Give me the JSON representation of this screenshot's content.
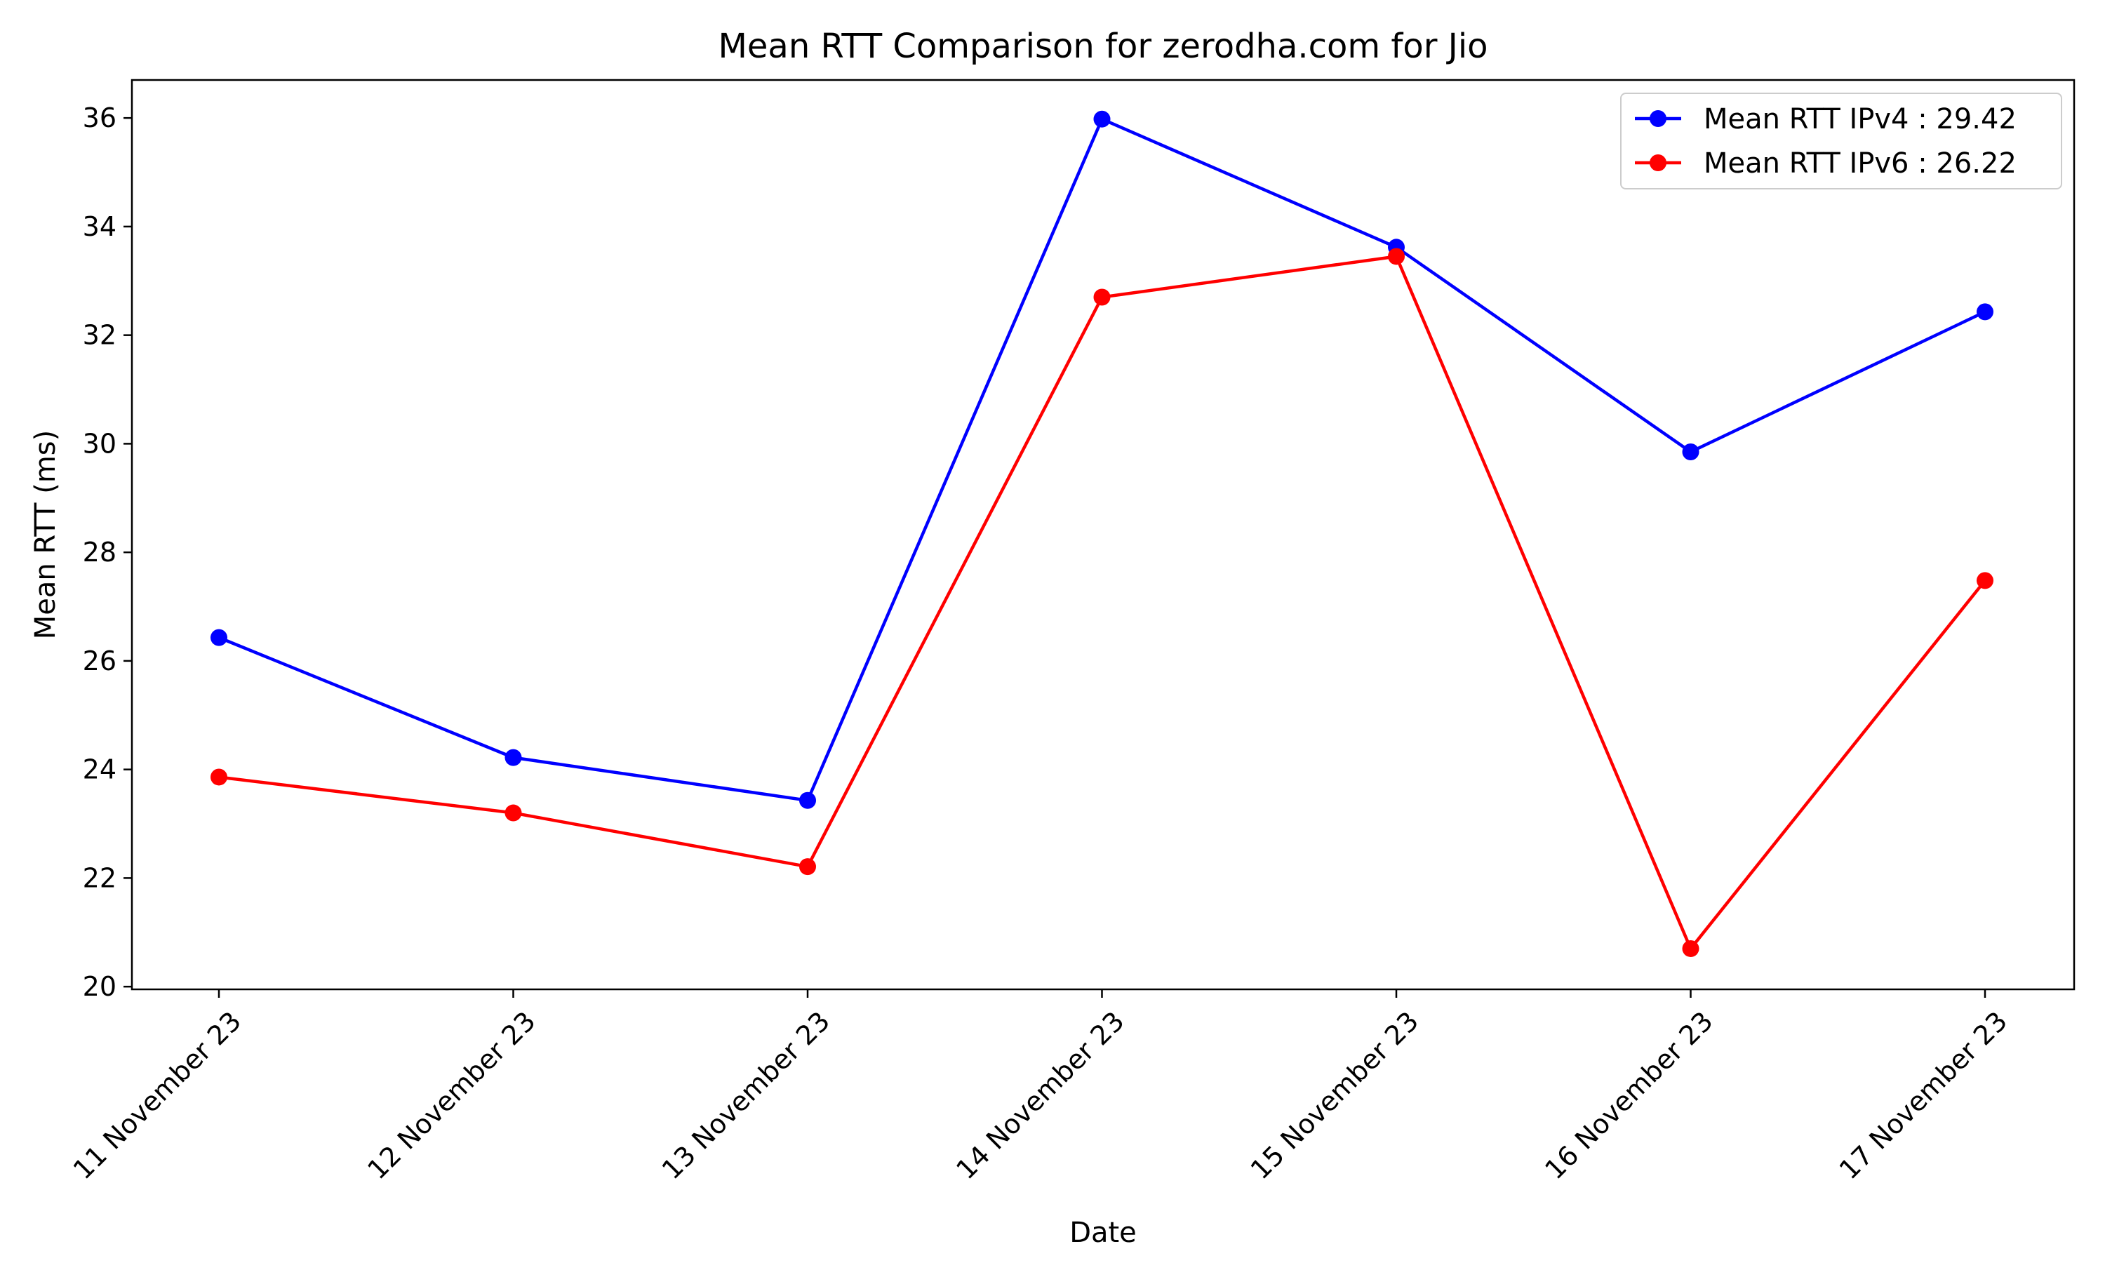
{
  "chart_data": {
    "type": "line",
    "title": "Mean RTT Comparison for zerodha.com for Jio",
    "xlabel": "Date",
    "ylabel": "Mean RTT (ms)",
    "categories": [
      "11 November 23",
      "12 November 23",
      "13 November 23",
      "14 November 23",
      "15 November 23",
      "16 November 23",
      "17 November 23"
    ],
    "ylim": [
      19.95,
      36.7
    ],
    "yticks": [
      20,
      22,
      24,
      26,
      28,
      30,
      32,
      34,
      36
    ],
    "grid": false,
    "legend_position": "top-right",
    "series": [
      {
        "name": "Mean RTT IPv4 : 29.42",
        "color": "#0000ff",
        "marker": "circle",
        "values": [
          26.43,
          24.22,
          23.43,
          35.98,
          33.62,
          29.85,
          32.43
        ]
      },
      {
        "name": "Mean RTT IPv6 : 26.22",
        "color": "#ff0000",
        "marker": "circle",
        "values": [
          23.86,
          23.2,
          22.21,
          32.7,
          33.45,
          20.7,
          27.48
        ]
      }
    ]
  }
}
